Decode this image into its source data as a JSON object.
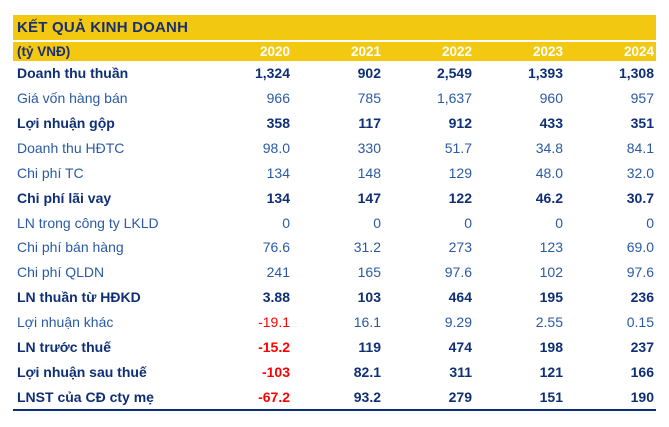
{
  "chart_data": {
    "type": "table",
    "title": "KẾT QUẢ KINH DOANH",
    "unit": "(tỷ VNĐ)",
    "columns": [
      "2020",
      "2021",
      "2022",
      "2023",
      "2024"
    ],
    "rows": [
      {
        "label": "Doanh thu thuần",
        "bold": true,
        "values": [
          "1,324",
          "902",
          "2,549",
          "1,393",
          "1,308"
        ]
      },
      {
        "label": "Giá vốn hàng bán",
        "bold": false,
        "values": [
          "966",
          "785",
          "1,637",
          "960",
          "957"
        ]
      },
      {
        "label": "Lợi nhuận gộp",
        "bold": true,
        "values": [
          "358",
          "117",
          "912",
          "433",
          "351"
        ]
      },
      {
        "label": "Doanh thu HĐTC",
        "bold": false,
        "values": [
          "98.0",
          "330",
          "51.7",
          "34.8",
          "84.1"
        ]
      },
      {
        "label": "Chi phí TC",
        "bold": false,
        "values": [
          "134",
          "148",
          "129",
          "48.0",
          "32.0"
        ]
      },
      {
        "label": "Chi phí lãi vay",
        "bold": true,
        "values": [
          "134",
          "147",
          "122",
          "46.2",
          "30.7"
        ]
      },
      {
        "label": "LN trong công ty LKLD",
        "bold": false,
        "values": [
          "0",
          "0",
          "0",
          "0",
          "0"
        ]
      },
      {
        "label": "Chi phí bán hàng",
        "bold": false,
        "values": [
          "76.6",
          "31.2",
          "273",
          "123",
          "69.0"
        ]
      },
      {
        "label": "Chi phí QLDN",
        "bold": false,
        "values": [
          "241",
          "165",
          "97.6",
          "102",
          "97.6"
        ]
      },
      {
        "label": "LN thuần từ HĐKD",
        "bold": true,
        "values": [
          "3.88",
          "103",
          "464",
          "195",
          "236"
        ]
      },
      {
        "label": "Lợi nhuận khác",
        "bold": false,
        "values": [
          "-19.1",
          "16.1",
          "9.29",
          "2.55",
          "0.15"
        ]
      },
      {
        "label": "LN trước thuế",
        "bold": true,
        "values": [
          "-15.2",
          "119",
          "474",
          "198",
          "237"
        ]
      },
      {
        "label": "Lợi nhuận sau thuế",
        "bold": true,
        "values": [
          "-103",
          "82.1",
          "311",
          "121",
          "166"
        ]
      },
      {
        "label": "LNST của CĐ cty mẹ",
        "bold": true,
        "values": [
          "-67.2",
          "93.2",
          "279",
          "151",
          "190"
        ]
      }
    ]
  },
  "colors": {
    "header_bg": "#F2C811",
    "title_text": "#1A2F6E",
    "year_text": "#FFFFFF",
    "bold_text": "#0E2F77",
    "regular_text": "#2A5AA5",
    "negative_text": "#FF0000",
    "border": "#0E2F77"
  }
}
